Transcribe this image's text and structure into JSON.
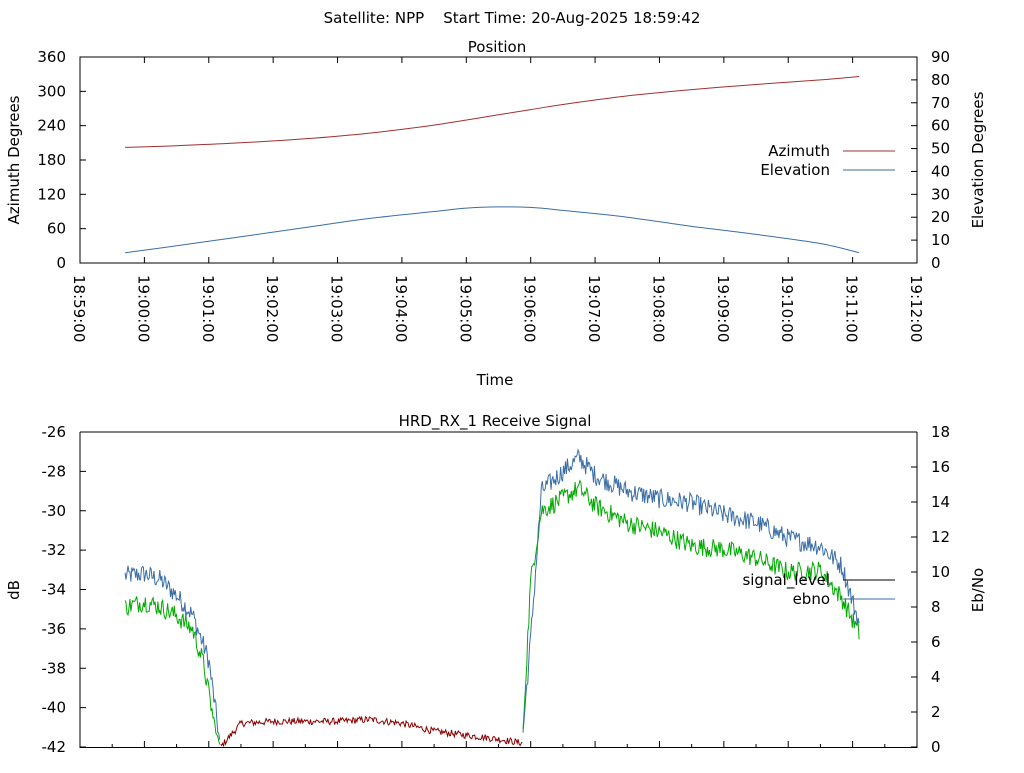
{
  "header": {
    "text": "Satellite: NPP    Start Time: 20-Aug-2025 18:59:42"
  },
  "colors": {
    "azimuth": "#a03030",
    "elevation": "#3a6ea5",
    "ebno": "#00aa00",
    "signal_legend": "#000000",
    "low_signal": "#8b0000",
    "axis": "#000000"
  },
  "chart_data": [
    {
      "type": "line",
      "title": "Position",
      "xlabel": "Time",
      "ylabel_left": "Azimuth Degrees",
      "ylabel_right": "Elevation Degrees",
      "xlim": [
        "18:59:00",
        "19:12:00"
      ],
      "ylim_left": [
        0,
        360
      ],
      "ylim_right": [
        0,
        90
      ],
      "x_ticks": [
        "18:59:00",
        "19:00:00",
        "19:01:00",
        "19:02:00",
        "19:03:00",
        "19:04:00",
        "19:05:00",
        "19:06:00",
        "19:07:00",
        "19:08:00",
        "19:09:00",
        "19:10:00",
        "19:11:00",
        "19:12:00"
      ],
      "y_ticks_left": [
        "0",
        "60",
        "120",
        "180",
        "240",
        "300",
        "360"
      ],
      "y_ticks_right": [
        "0",
        "10",
        "20",
        "30",
        "40",
        "50",
        "60",
        "70",
        "80",
        "90"
      ],
      "legend_placement": "right",
      "grid": false,
      "series": [
        {
          "name": "Azimuth",
          "axis": "left",
          "color": "#a03030",
          "x": [
            "18:59:42",
            "19:00:30",
            "19:01:30",
            "19:02:30",
            "19:03:30",
            "19:04:30",
            "19:05:30",
            "19:06:00",
            "19:06:30",
            "19:07:30",
            "19:08:30",
            "19:09:30",
            "19:10:30",
            "19:11:06"
          ],
          "values": [
            202,
            205,
            210,
            217,
            227,
            241,
            259,
            268,
            277,
            292,
            303,
            312,
            320,
            326
          ]
        },
        {
          "name": "Elevation",
          "axis": "right",
          "color": "#3a6ea5",
          "x": [
            "18:59:42",
            "19:00:30",
            "19:01:30",
            "19:02:30",
            "19:03:30",
            "19:04:30",
            "19:05:00",
            "19:05:30",
            "19:06:00",
            "19:06:30",
            "19:07:30",
            "19:08:30",
            "19:09:30",
            "19:10:30",
            "19:11:06"
          ],
          "values": [
            4.5,
            7.5,
            11.5,
            15.5,
            19.5,
            22.5,
            24.0,
            24.5,
            24.3,
            23.0,
            20.0,
            16.0,
            12.5,
            8.5,
            4.5
          ]
        }
      ]
    },
    {
      "type": "line",
      "title": "HRD_RX_1 Receive Signal",
      "xlabel": "",
      "ylabel_left": "dB",
      "ylabel_right": "Eb/No",
      "xlim": [
        "18:59:00",
        "19:12:00"
      ],
      "ylim_left": [
        -42,
        -26
      ],
      "ylim_right": [
        0,
        18
      ],
      "y_ticks_left": [
        "-42",
        "-40",
        "-38",
        "-36",
        "-34",
        "-32",
        "-30",
        "-28",
        "-26"
      ],
      "y_ticks_right": [
        "0",
        "2",
        "4",
        "6",
        "8",
        "10",
        "12",
        "14",
        "16",
        "18"
      ],
      "legend_placement": "right",
      "grid": false,
      "series": [
        {
          "name": "signal_level",
          "axis": "left",
          "color": "#3a6ea5",
          "x": [
            "18:59:42",
            "19:00:00",
            "19:00:15",
            "19:00:30",
            "19:00:45",
            "19:01:00",
            "19:01:06",
            "19:01:11",
            "19:01:30",
            "19:02:00",
            "19:03:00",
            "19:03:30",
            "19:04:00",
            "19:04:30",
            "19:05:00",
            "19:05:30",
            "19:05:52",
            "19:06:00",
            "19:06:10",
            "19:06:30",
            "19:06:45",
            "19:07:00",
            "19:07:30",
            "19:08:00",
            "19:08:30",
            "19:09:00",
            "19:09:30",
            "19:10:00",
            "19:10:30",
            "19:10:50",
            "19:11:06"
          ],
          "values": [
            -33.3,
            -33.2,
            -33.5,
            -34.3,
            -35.3,
            -37.6,
            -40.0,
            -42.0,
            -40.8,
            -40.7,
            -40.7,
            -40.6,
            -40.8,
            -41.2,
            -41.4,
            -41.6,
            -41.8,
            -36.5,
            -29.0,
            -28.0,
            -27.3,
            -28.2,
            -29.0,
            -29.4,
            -29.6,
            -30.2,
            -30.6,
            -31.4,
            -31.8,
            -32.8,
            -35.7
          ]
        },
        {
          "name": "ebno",
          "axis": "right",
          "color": "#00aa00",
          "x": [
            "18:59:42",
            "19:00:00",
            "19:00:15",
            "19:00:30",
            "19:00:45",
            "19:00:55",
            "19:01:06",
            "19:01:11",
            "19:05:52",
            "19:06:00",
            "19:06:10",
            "19:06:30",
            "19:06:45",
            "19:07:00",
            "19:07:30",
            "19:08:00",
            "19:08:30",
            "19:09:00",
            "19:09:30",
            "19:10:00",
            "19:10:30",
            "19:10:50",
            "19:11:06"
          ],
          "values": [
            8.0,
            8.3,
            8.0,
            7.5,
            6.7,
            4.8,
            1.0,
            0.0,
            0.0,
            9.5,
            13.5,
            14.2,
            14.8,
            13.8,
            12.8,
            12.3,
            11.5,
            11.3,
            10.8,
            10.0,
            10.1,
            8.5,
            6.5
          ]
        }
      ]
    }
  ]
}
